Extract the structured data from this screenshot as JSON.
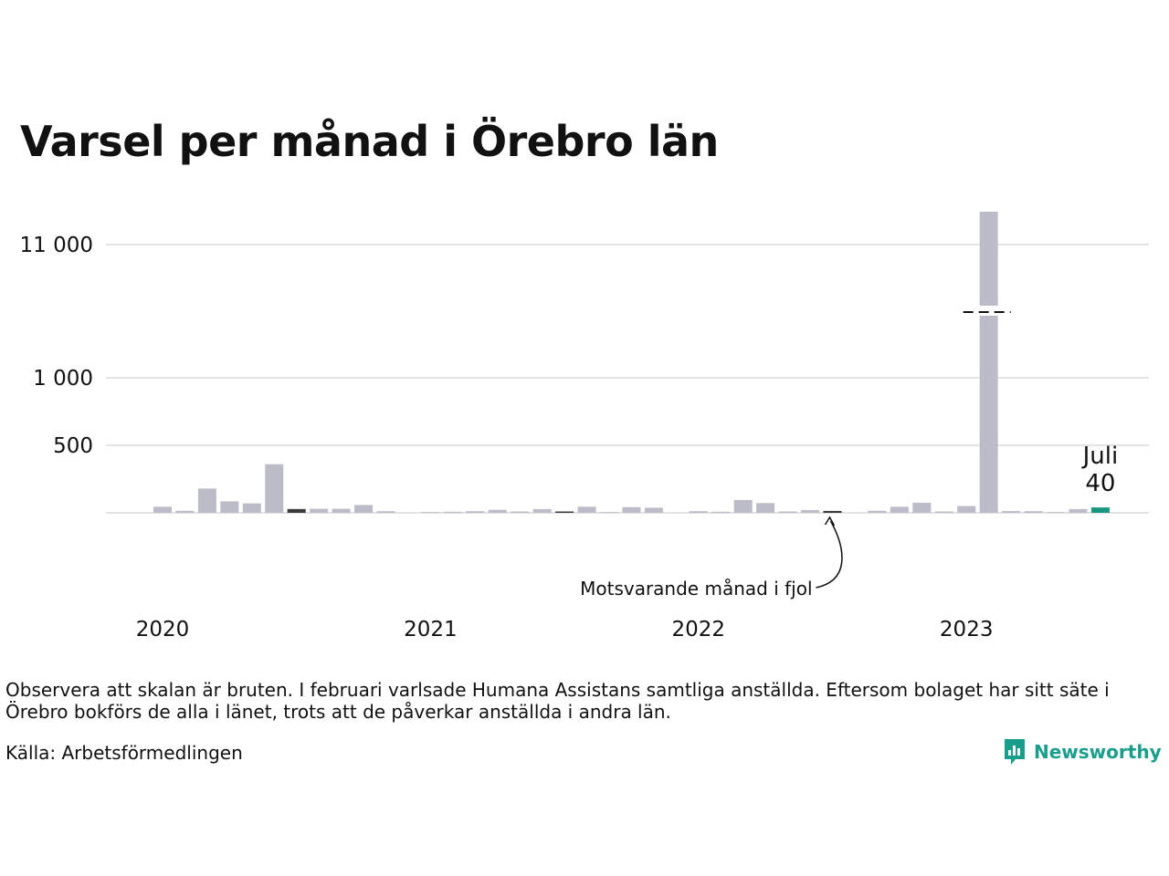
{
  "title": "Varsel per månad i Örebro län",
  "chart_data": {
    "type": "bar",
    "title": "Varsel per månad i Örebro län",
    "xlabel": "",
    "ylabel": "",
    "broken_axis": true,
    "y_ticks": [
      {
        "value": 500,
        "label": "500"
      },
      {
        "value": 1000,
        "label": "1 000"
      },
      {
        "value": 11000,
        "label": "11 000"
      }
    ],
    "x_year_labels": [
      "2020",
      "2021",
      "2022",
      "2023"
    ],
    "grid": true,
    "colors": {
      "bar": "#bcbbc8",
      "same_month_last_years": "#3a3a3a",
      "current": "#1a9680",
      "grid": "#e3e3e3"
    },
    "months": [
      "2020-01",
      "2020-02",
      "2020-03",
      "2020-04",
      "2020-05",
      "2020-06",
      "2020-07",
      "2020-08",
      "2020-09",
      "2020-10",
      "2020-11",
      "2020-12",
      "2021-01",
      "2021-02",
      "2021-03",
      "2021-04",
      "2021-05",
      "2021-06",
      "2021-07",
      "2021-08",
      "2021-09",
      "2021-10",
      "2021-11",
      "2021-12",
      "2022-01",
      "2022-02",
      "2022-03",
      "2022-04",
      "2022-05",
      "2022-06",
      "2022-07",
      "2022-08",
      "2022-09",
      "2022-10",
      "2022-11",
      "2022-12",
      "2023-01",
      "2023-02",
      "2023-03",
      "2023-04",
      "2023-05",
      "2023-06",
      "2023-07"
    ],
    "values": [
      45,
      15,
      180,
      85,
      70,
      360,
      28,
      30,
      30,
      58,
      12,
      0,
      5,
      8,
      12,
      22,
      10,
      28,
      10,
      45,
      5,
      42,
      38,
      0,
      12,
      8,
      95,
      72,
      10,
      20,
      14,
      0,
      15,
      45,
      75,
      10,
      50,
      11600,
      13,
      12,
      5,
      28,
      40
    ],
    "highlight_same_month": [
      "2020-07",
      "2021-07",
      "2022-07"
    ],
    "current": {
      "month": "2023-07",
      "label": "Juli",
      "value": "40"
    },
    "annotation": "Motsvarande månad i fjol"
  },
  "note": "Observera att skalan är bruten. I februari varlsade Humana Assistans samtliga anställda. Eftersom bolaget har sitt säte i Örebro bokförs de alla i länet, trots att de påverkar anställda i andra län.",
  "source": "Källa: Arbetsförmedlingen",
  "brand": "Newsworthy"
}
